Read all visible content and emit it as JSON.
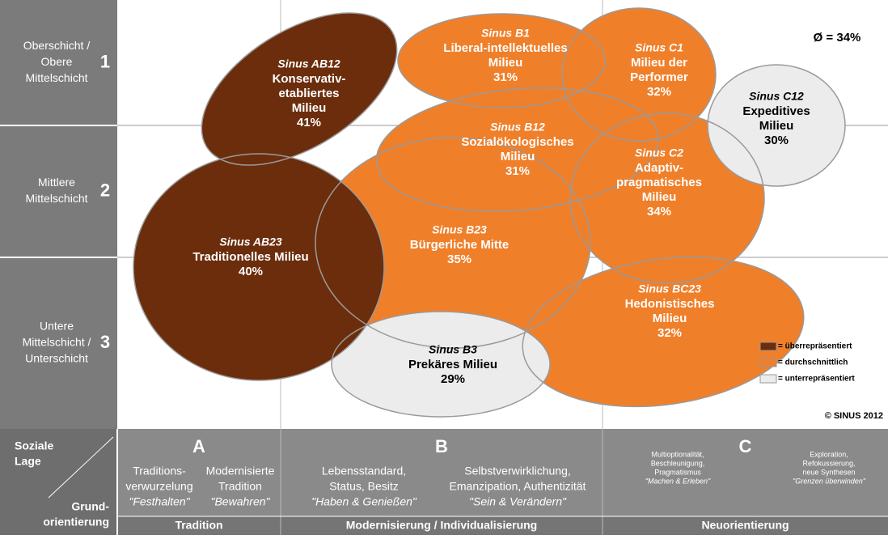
{
  "average": "Ø = 34%",
  "copyright": "© SINUS 2012",
  "rows": [
    {
      "label": [
        "Oberschicht /",
        "Obere",
        "Mittelschicht"
      ],
      "number": "1"
    },
    {
      "label": [
        "Mittlere",
        "Mittelschicht"
      ],
      "number": "2"
    },
    {
      "label": [
        "Untere",
        "Mittelschicht /",
        "Unterschicht"
      ],
      "number": "3"
    }
  ],
  "milieus": [
    {
      "code": "Sinus B1",
      "name": [
        "Liberal-intellektuelles",
        "Milieu"
      ],
      "share": "31%",
      "color": "#f07f2a"
    },
    {
      "code": "Sinus C1",
      "name": [
        "Milieu der",
        "Performer"
      ],
      "share": "32%",
      "color": "#f07f2a"
    },
    {
      "code": "Sinus B12",
      "name": [
        "Sozialökologisches",
        "Milieu"
      ],
      "share": "31%",
      "color": "#f07f2a"
    },
    {
      "code": "Sinus C2",
      "name": [
        "Adaptiv-",
        "pragmatisches",
        "Milieu"
      ],
      "share": "34%",
      "color": "#f07f2a"
    },
    {
      "code": "Sinus B23",
      "name": [
        "Bürgerliche Mitte"
      ],
      "share": "35%",
      "color": "#f07f2a"
    },
    {
      "code": "Sinus BC23",
      "name": [
        "Hedonistisches",
        "Milieu"
      ],
      "share": "32%",
      "color": "#f07f2a"
    },
    {
      "code": "Sinus B3",
      "name": [
        "Prekäres Milieu"
      ],
      "share": "29%",
      "color": "#ececec"
    },
    {
      "code": "Sinus C12",
      "name": [
        "Expeditives",
        "Milieu"
      ],
      "share": "30%",
      "color": "#ececec"
    },
    {
      "code": "Sinus AB12",
      "name": [
        "Konservativ-",
        "etabliertes",
        "Milieu"
      ],
      "share": "41%",
      "color": "#6b2d0c"
    },
    {
      "code": "Sinus AB23",
      "name": [
        "Traditionelles Milieu"
      ],
      "share": "40%",
      "color": "#6b2d0c"
    }
  ],
  "legend": [
    {
      "label": "= überrepräsentiert",
      "color": "#6b2d0c"
    },
    {
      "label": "= durchschnittlich",
      "color": "#f07f2a"
    },
    {
      "label": "= unterrepräsentiert",
      "color": "#ececec"
    }
  ],
  "axis": {
    "top_label": [
      "Soziale",
      "Lage"
    ],
    "bottom_label": [
      "Grund-",
      "orientierung"
    ]
  },
  "columns": [
    {
      "letter": "A",
      "title": "Tradition",
      "groups": [
        {
          "lines": [
            "Traditions-",
            "verwurzelung"
          ],
          "motto": "\"Festhalten\""
        },
        {
          "lines": [
            "Modernisierte",
            "Tradition"
          ],
          "motto": "\"Bewahren\""
        }
      ]
    },
    {
      "letter": "B",
      "title": "Modernisierung / Individualisierung",
      "groups": [
        {
          "lines": [
            "Lebensstandard,",
            "Status, Besitz"
          ],
          "motto": "\"Haben & Genießen\""
        },
        {
          "lines": [
            "Selbstverwirklichung,",
            "Emanzipation, Authentizität"
          ],
          "motto": "\"Sein & Verändern\""
        }
      ]
    },
    {
      "letter": "C",
      "title": "Neuorientierung",
      "groups": [
        {
          "lines": [
            "Multioptionalität,",
            "Beschleunigung,",
            "Pragmatismus"
          ],
          "motto": "\"Machen & Erleben\""
        },
        {
          "lines": [
            "Exploration,",
            "Refokussierung,",
            "neue Synthesen"
          ],
          "motto": "\"Grenzen überwinden\""
        }
      ]
    }
  ]
}
